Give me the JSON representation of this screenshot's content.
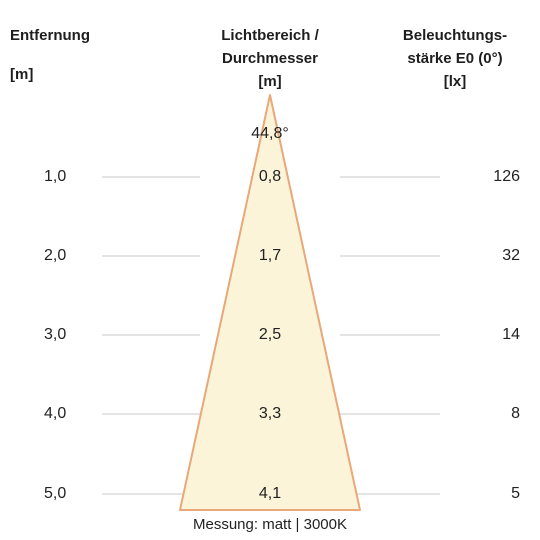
{
  "headers": {
    "distance": {
      "title": "Entfernung",
      "unit": "[m]"
    },
    "diameter": {
      "title_line1": "Lichtbereich /",
      "title_line2": "Durchmesser",
      "unit": "[m]"
    },
    "illuminance": {
      "title_line1": "Beleuchtungs-",
      "title_line2": "stärke E0 (0°)",
      "unit": "[lx]"
    }
  },
  "beam_angle": "44,8°",
  "rows": [
    {
      "distance": "1,0",
      "diameter": "0,8",
      "illuminance": "126"
    },
    {
      "distance": "2,0",
      "diameter": "1,7",
      "illuminance": "32"
    },
    {
      "distance": "3,0",
      "diameter": "2,5",
      "illuminance": "14"
    },
    {
      "distance": "4,0",
      "diameter": "3,3",
      "illuminance": "8"
    },
    {
      "distance": "5,0",
      "diameter": "4,1",
      "illuminance": "5"
    }
  ],
  "footer": "Messung: matt | 3000K",
  "colors": {
    "cone_fill": "#fbf4d9",
    "cone_edge": "#e8a878",
    "grid_line": "#c8c8c8",
    "text": "#222222"
  }
}
